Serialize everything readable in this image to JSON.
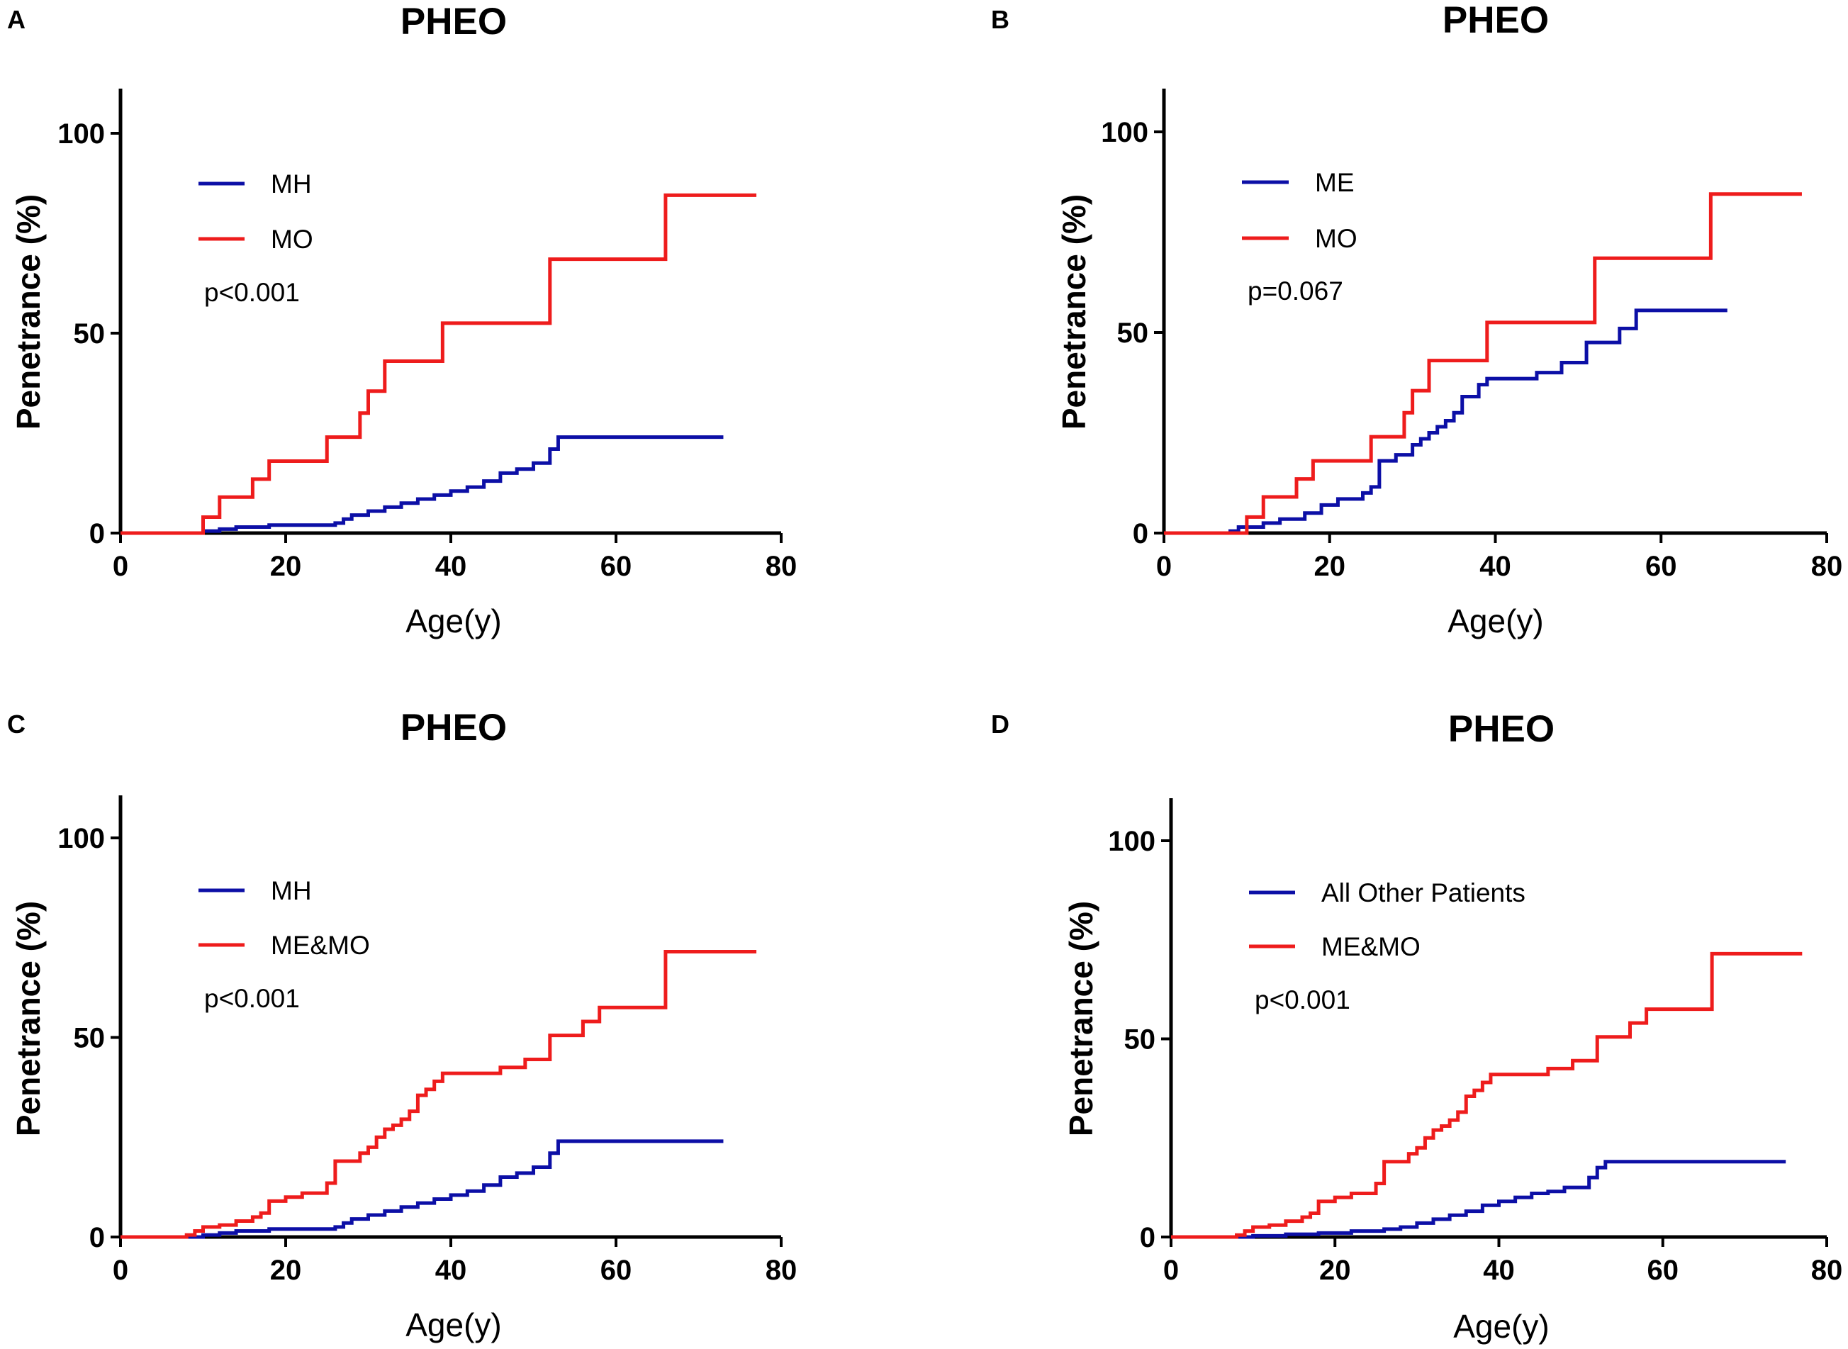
{
  "colors": {
    "blue": "#0c0fa6",
    "red": "#ee1c1c"
  },
  "chart_data": [
    {
      "panel": "A",
      "type": "line",
      "title": "PHEO",
      "xlabel": "Age(y)",
      "ylabel": "Penetrance (%)",
      "xlim": [
        0,
        80
      ],
      "ylim": [
        0,
        110
      ],
      "xticks": [
        0,
        20,
        40,
        60,
        80
      ],
      "yticks": [
        0,
        50,
        100
      ],
      "legend_position": "top-left",
      "annotation": "p<0.001",
      "series": [
        {
          "name": "MH",
          "color": "blue",
          "x": [
            0,
            10,
            12,
            14,
            18,
            26,
            27,
            28,
            30,
            32,
            34,
            36,
            38,
            40,
            42,
            44,
            46,
            48,
            50,
            52,
            53,
            73
          ],
          "y": [
            0,
            0.5,
            1,
            1.5,
            2,
            2.5,
            3.5,
            4.5,
            5.5,
            6.5,
            7.5,
            8.5,
            9.5,
            10.5,
            11.5,
            13,
            15,
            16,
            17.5,
            21,
            24,
            24
          ]
        },
        {
          "name": "MO",
          "color": "red",
          "x": [
            0,
            10,
            12,
            16,
            18,
            25,
            29,
            30,
            32,
            39,
            52,
            66,
            77
          ],
          "y": [
            0,
            4,
            9,
            13.5,
            18,
            24,
            30,
            35.5,
            43,
            52.5,
            68.5,
            84.5,
            84.5
          ]
        }
      ]
    },
    {
      "panel": "B",
      "type": "line",
      "title": "PHEO",
      "xlabel": "Age(y)",
      "ylabel": "Penetrance (%)",
      "xlim": [
        0,
        80
      ],
      "ylim": [
        0,
        110
      ],
      "xticks": [
        0,
        20,
        40,
        60,
        80
      ],
      "yticks": [
        0,
        50,
        100
      ],
      "legend_position": "top-left",
      "annotation": "p=0.067",
      "series": [
        {
          "name": "ME",
          "color": "blue",
          "x": [
            0,
            8,
            9,
            12,
            14,
            17,
            19,
            21,
            24,
            25,
            26,
            28,
            30,
            31,
            32,
            33,
            34,
            35,
            36,
            38,
            39,
            45,
            48,
            51,
            55,
            57,
            58,
            68
          ],
          "y": [
            0,
            0.5,
            1.5,
            2.5,
            3.5,
            5,
            7,
            8.5,
            10,
            11.5,
            18,
            19.5,
            22,
            23.5,
            25,
            26.5,
            28,
            30,
            34,
            37,
            38.5,
            40,
            42.5,
            47.5,
            51,
            55.5,
            55.5,
            55.5
          ]
        },
        {
          "name": "MO",
          "color": "red",
          "x": [
            0,
            10,
            12,
            16,
            18,
            25,
            29,
            30,
            32,
            39,
            52,
            66,
            77
          ],
          "y": [
            0,
            4,
            9,
            13.5,
            18,
            24,
            30,
            35.5,
            43,
            52.5,
            68.5,
            84.5,
            84.5
          ]
        }
      ]
    },
    {
      "panel": "C",
      "type": "line",
      "title": "PHEO",
      "xlabel": "Age(y)",
      "ylabel": "Penetrance (%)",
      "xlim": [
        0,
        80
      ],
      "ylim": [
        0,
        110
      ],
      "xticks": [
        0,
        20,
        40,
        60,
        80
      ],
      "yticks": [
        0,
        50,
        100
      ],
      "legend_position": "top-left",
      "annotation": "p<0.001",
      "series": [
        {
          "name": "MH",
          "color": "blue",
          "x": [
            0,
            10,
            12,
            14,
            18,
            26,
            27,
            28,
            30,
            32,
            34,
            36,
            38,
            40,
            42,
            44,
            46,
            48,
            50,
            52,
            53,
            73
          ],
          "y": [
            0,
            0.5,
            1,
            1.5,
            2,
            2.5,
            3.5,
            4.5,
            5.5,
            6.5,
            7.5,
            8.5,
            9.5,
            10.5,
            11.5,
            13,
            15,
            16,
            17.5,
            21,
            24,
            24
          ]
        },
        {
          "name": "ME&MO",
          "color": "red",
          "x": [
            0,
            8,
            9,
            10,
            12,
            14,
            16,
            17,
            18,
            20,
            22,
            25,
            26,
            29,
            30,
            31,
            32,
            33,
            34,
            35,
            36,
            37,
            38,
            39,
            46,
            49,
            52,
            56,
            58,
            66,
            77
          ],
          "y": [
            0,
            0.5,
            1.5,
            2.5,
            3,
            4,
            5,
            6,
            9,
            10,
            11,
            13.5,
            19,
            21,
            22.5,
            25,
            27,
            28,
            29.5,
            31.5,
            35.5,
            37,
            39,
            41,
            42.5,
            44.5,
            50.5,
            54,
            57.5,
            71.5,
            71.5
          ]
        }
      ]
    },
    {
      "panel": "D",
      "type": "line",
      "title": "PHEO",
      "xlabel": "Age(y)",
      "ylabel": "Penetrance (%)",
      "xlim": [
        0,
        80
      ],
      "ylim": [
        0,
        110
      ],
      "xticks": [
        0,
        20,
        40,
        60,
        80
      ],
      "yticks": [
        0,
        50,
        100
      ],
      "legend_position": "top-left",
      "annotation": "p<0.001",
      "series": [
        {
          "name": "All Other Patients",
          "color": "blue",
          "x": [
            0,
            10,
            14,
            18,
            22,
            26,
            28,
            30,
            32,
            34,
            36,
            38,
            40,
            42,
            44,
            46,
            48,
            51,
            52,
            53,
            75
          ],
          "y": [
            0,
            0.3,
            0.7,
            1,
            1.5,
            2,
            2.5,
            3.5,
            4.5,
            5.5,
            6.5,
            8,
            9,
            10,
            11,
            11.5,
            12.5,
            15,
            17.5,
            19,
            19
          ]
        },
        {
          "name": "ME&MO",
          "color": "red",
          "x": [
            0,
            8,
            9,
            10,
            12,
            14,
            16,
            17,
            18,
            20,
            22,
            25,
            26,
            29,
            30,
            31,
            32,
            33,
            34,
            35,
            36,
            37,
            38,
            39,
            46,
            49,
            52,
            56,
            58,
            66,
            77
          ],
          "y": [
            0,
            0.5,
            1.5,
            2.5,
            3,
            4,
            5,
            6,
            9,
            10,
            11,
            13.5,
            19,
            21,
            22.5,
            25,
            27,
            28,
            29.5,
            31.5,
            35.5,
            37,
            39,
            41,
            42.5,
            44.5,
            50.5,
            54,
            57.5,
            71.5,
            71.5
          ]
        }
      ]
    }
  ]
}
